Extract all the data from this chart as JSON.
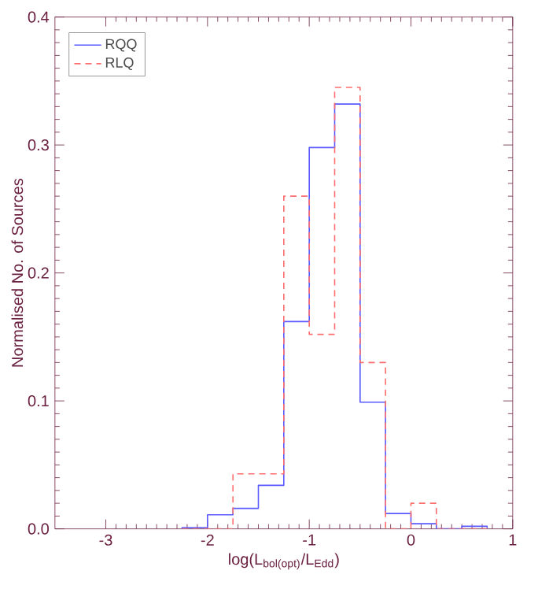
{
  "chart_data": {
    "type": "histogram",
    "xlabel": "log(L$_{bol(opt)}$/L$_{Edd}$)",
    "ylabel": "Normalised No. of Sources",
    "bins": [
      -2.25,
      -2.0,
      -1.75,
      -1.5,
      -1.25,
      -1.0,
      -0.75,
      -0.5,
      -0.25,
      0.0,
      0.25,
      0.5,
      0.75
    ],
    "series": [
      {
        "name": "RQQ",
        "color": "#5a5aff",
        "line_style": "solid",
        "values": [
          0.001,
          0.011,
          0.016,
          0.034,
          0.162,
          0.298,
          0.332,
          0.099,
          0.012,
          0.004,
          0.0,
          0.002
        ]
      },
      {
        "name": "RLQ",
        "color": "#ff6e6e",
        "line_style": "dashed",
        "values": [
          0.0,
          0.0,
          0.043,
          0.043,
          0.26,
          0.152,
          0.345,
          0.13,
          0.0,
          0.02,
          0.0,
          0.0
        ]
      }
    ],
    "xlim": [
      -3.5,
      1
    ],
    "ylim": [
      0,
      0.4
    ],
    "xticks": [
      -3,
      -2,
      -1,
      0,
      1
    ],
    "yticks": [
      {
        "value": 0,
        "label": "0.0"
      },
      {
        "value": 0.1,
        "label": "0.1"
      },
      {
        "value": 0.2,
        "label": "0.2"
      },
      {
        "value": 0.3,
        "label": "0.3"
      },
      {
        "value": 0.4,
        "label": "0.4"
      }
    ],
    "legend": "top left"
  }
}
